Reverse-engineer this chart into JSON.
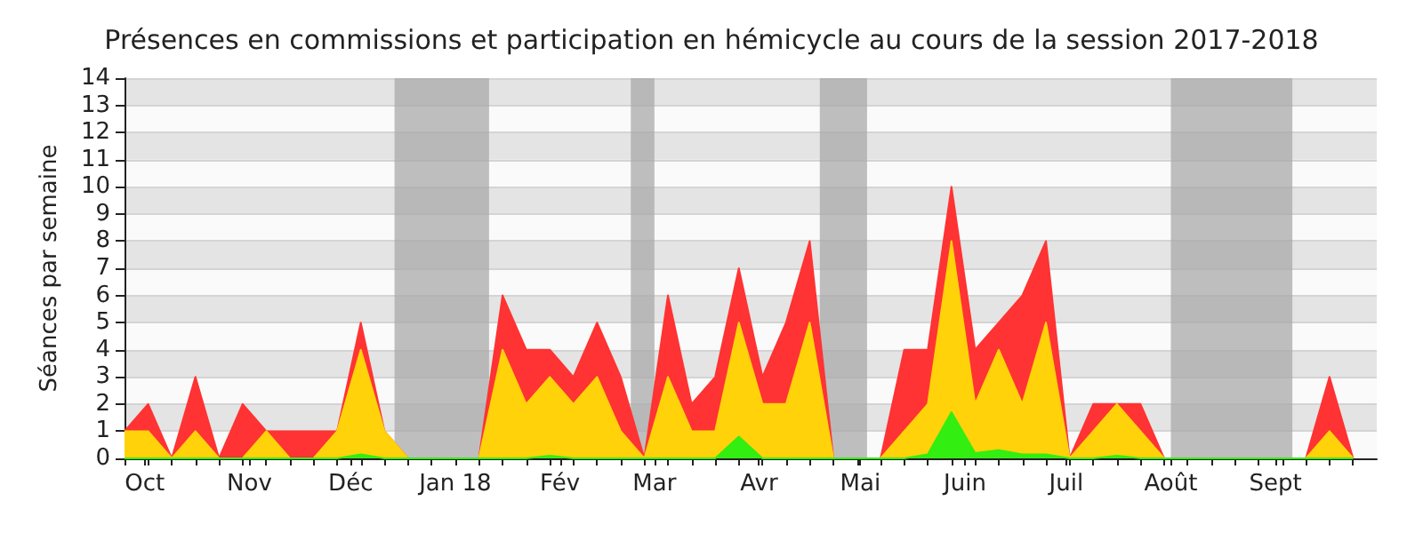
{
  "chart_data": {
    "type": "area",
    "stacked": true,
    "title": "Présences en commissions et participation en hémicycle au cours de la session 2017-2018",
    "ylabel": "Séances par semaine",
    "x": [
      "2017-09-25",
      "2017-10-02",
      "2017-10-09",
      "2017-10-16",
      "2017-10-23",
      "2017-10-30",
      "2017-11-06",
      "2017-11-13",
      "2017-11-20",
      "2017-11-27",
      "2017-12-04",
      "2017-12-11",
      "2017-12-18",
      "2017-12-25",
      "2018-01-01",
      "2018-01-08",
      "2018-01-15",
      "2018-01-22",
      "2018-01-29",
      "2018-02-05",
      "2018-02-12",
      "2018-02-19",
      "2018-02-26",
      "2018-03-05",
      "2018-03-12",
      "2018-03-19",
      "2018-03-26",
      "2018-04-02",
      "2018-04-09",
      "2018-04-16",
      "2018-04-23",
      "2018-04-30",
      "2018-05-07",
      "2018-05-14",
      "2018-05-21",
      "2018-05-28",
      "2018-06-04",
      "2018-06-11",
      "2018-06-18",
      "2018-06-25",
      "2018-07-02",
      "2018-07-09",
      "2018-07-16",
      "2018-07-23",
      "2018-07-30",
      "2018-08-06",
      "2018-08-13",
      "2018-08-20",
      "2018-08-27",
      "2018-09-03",
      "2018-09-10",
      "2018-09-17",
      "2018-09-24"
    ],
    "series": [
      {
        "color": "#33ee11",
        "values": [
          0,
          0,
          0,
          0,
          0,
          0,
          0,
          0,
          0,
          0,
          0.15,
          0,
          0,
          0,
          0,
          0,
          0,
          0,
          0.1,
          0,
          0,
          0,
          0,
          0,
          0,
          0,
          0.8,
          0,
          0,
          0,
          0,
          0,
          0,
          0,
          0.15,
          1.7,
          0.2,
          0.3,
          0.15,
          0.15,
          0,
          0,
          0.1,
          0,
          0,
          0,
          0,
          0,
          0,
          0,
          0,
          0,
          0
        ]
      },
      {
        "color": "#ffd20a",
        "values": [
          1,
          1,
          0,
          1,
          0,
          0,
          1,
          0,
          0,
          1,
          3.85,
          1,
          0,
          0,
          0,
          0,
          4,
          2,
          2.9,
          2,
          3,
          1,
          0,
          3,
          1,
          1,
          4.2,
          2,
          2,
          5,
          0,
          0,
          0,
          1,
          1.85,
          6.3,
          1.8,
          3.7,
          1.85,
          4.85,
          0,
          1,
          1.9,
          1,
          0,
          0,
          0,
          0,
          0,
          0,
          0,
          1,
          0
        ]
      },
      {
        "color": "#ff3333",
        "values": [
          0,
          1,
          0,
          2,
          0,
          2,
          0,
          1,
          1,
          0,
          1,
          0,
          0,
          0,
          0,
          0,
          2,
          2,
          1,
          1,
          2,
          2,
          0,
          3,
          1,
          2,
          2,
          1,
          3,
          3,
          0,
          0,
          0,
          3,
          2,
          2,
          2,
          1,
          4,
          3,
          0,
          1,
          0,
          1,
          0,
          0,
          0,
          0,
          0,
          0,
          0,
          2,
          0
        ]
      }
    ],
    "bands": [
      {
        "axis": "x",
        "from": "2017-12-14",
        "to": "2018-01-11",
        "color": "#aaaaaa"
      },
      {
        "axis": "x",
        "from": "2018-02-22",
        "to": "2018-03-01",
        "color": "#aaaaaa"
      },
      {
        "axis": "x",
        "from": "2018-04-19",
        "to": "2018-05-03",
        "color": "#aaaaaa"
      },
      {
        "axis": "x",
        "from": "2018-08-01",
        "to": "2018-09-06",
        "color": "#aaaaaa"
      }
    ],
    "xlim": [
      "2017-09-25",
      "2018-10-01"
    ],
    "xticks": [
      {
        "value": "2017-10-01",
        "label": "Oct"
      },
      {
        "value": "2017-11-01",
        "label": "Nov"
      },
      {
        "value": "2017-12-01",
        "label": "Déc"
      },
      {
        "value": "2018-01-01",
        "label": "Jan 18"
      },
      {
        "value": "2018-02-01",
        "label": "Fév"
      },
      {
        "value": "2018-03-01",
        "label": "Mar"
      },
      {
        "value": "2018-04-01",
        "label": "Avr"
      },
      {
        "value": "2018-05-01",
        "label": "Mai"
      },
      {
        "value": "2018-06-01",
        "label": "Juin"
      },
      {
        "value": "2018-07-01",
        "label": "Juil"
      },
      {
        "value": "2018-08-01",
        "label": "Août"
      },
      {
        "value": "2018-09-01",
        "label": "Sept"
      },
      {
        "value": "2017-09-25",
        "label": null
      },
      {
        "value": "2017-10-02",
        "label": null
      },
      {
        "value": "2017-10-09",
        "label": null
      },
      {
        "value": "2017-10-16",
        "label": null
      },
      {
        "value": "2017-10-23",
        "label": null
      },
      {
        "value": "2017-10-30",
        "label": null
      },
      {
        "value": "2017-11-06",
        "label": null
      },
      {
        "value": "2017-11-13",
        "label": null
      },
      {
        "value": "2017-11-20",
        "label": null
      },
      {
        "value": "2017-11-27",
        "label": null
      },
      {
        "value": "2017-12-04",
        "label": null
      },
      {
        "value": "2017-12-11",
        "label": null
      },
      {
        "value": "2017-12-18",
        "label": null
      },
      {
        "value": "2017-12-25",
        "label": null
      },
      {
        "value": "2018-01-08",
        "label": null
      },
      {
        "value": "2018-01-15",
        "label": null
      },
      {
        "value": "2018-01-22",
        "label": null
      },
      {
        "value": "2018-01-29",
        "label": null
      },
      {
        "value": "2018-02-05",
        "label": null
      },
      {
        "value": "2018-02-12",
        "label": null
      },
      {
        "value": "2018-02-19",
        "label": null
      },
      {
        "value": "2018-02-26",
        "label": null
      },
      {
        "value": "2018-03-05",
        "label": null
      },
      {
        "value": "2018-03-12",
        "label": null
      },
      {
        "value": "2018-03-19",
        "label": null
      },
      {
        "value": "2018-03-26",
        "label": null
      },
      {
        "value": "2018-04-02",
        "label": null
      },
      {
        "value": "2018-04-09",
        "label": null
      },
      {
        "value": "2018-04-16",
        "label": null
      },
      {
        "value": "2018-04-23",
        "label": null
      },
      {
        "value": "2018-04-30",
        "label": null
      },
      {
        "value": "2018-05-07",
        "label": null
      },
      {
        "value": "2018-05-14",
        "label": null
      },
      {
        "value": "2018-05-21",
        "label": null
      },
      {
        "value": "2018-05-28",
        "label": null
      },
      {
        "value": "2018-06-04",
        "label": null
      },
      {
        "value": "2018-06-11",
        "label": null
      },
      {
        "value": "2018-06-18",
        "label": null
      },
      {
        "value": "2018-06-25",
        "label": null
      },
      {
        "value": "2018-07-02",
        "label": null
      },
      {
        "value": "2018-07-09",
        "label": null
      },
      {
        "value": "2018-07-16",
        "label": null
      },
      {
        "value": "2018-07-23",
        "label": null
      },
      {
        "value": "2018-07-30",
        "label": null
      },
      {
        "value": "2018-08-06",
        "label": null
      },
      {
        "value": "2018-08-13",
        "label": null
      },
      {
        "value": "2018-08-20",
        "label": null
      },
      {
        "value": "2018-08-27",
        "label": null
      },
      {
        "value": "2018-09-03",
        "label": null
      },
      {
        "value": "2018-09-10",
        "label": null
      },
      {
        "value": "2018-09-17",
        "label": null
      },
      {
        "value": "2018-09-24",
        "label": null
      }
    ],
    "ylim": [
      0,
      14
    ],
    "yticks": [
      0,
      1,
      2,
      3,
      4,
      5,
      6,
      7,
      8,
      9,
      10,
      11,
      12,
      13,
      14
    ],
    "grid": "y"
  }
}
